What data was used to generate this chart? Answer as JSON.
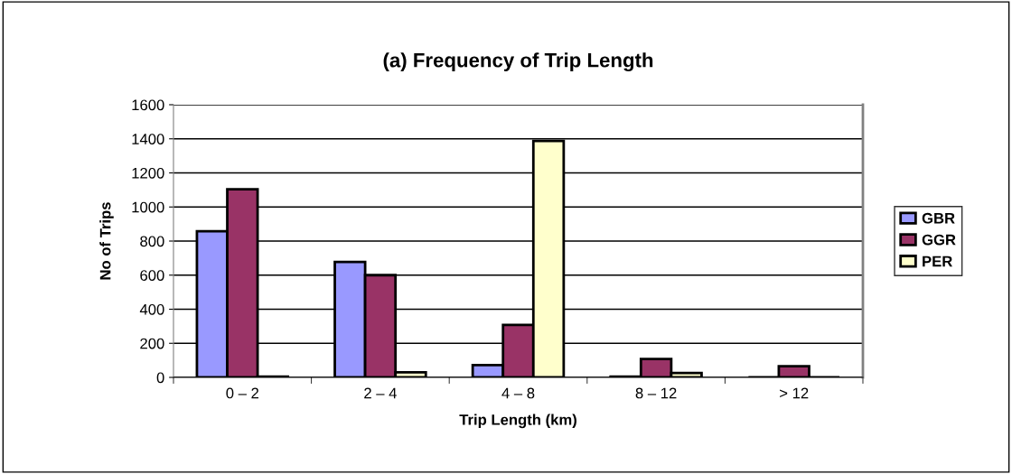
{
  "chart_data": {
    "type": "bar",
    "title": "(a) Frequency of Trip Length",
    "xlabel": "Trip Length (km)",
    "ylabel": "No of Trips",
    "categories": [
      "0 – 2",
      "2 – 4",
      "4 – 8",
      "8 – 12",
      "> 12"
    ],
    "series": [
      {
        "name": "GBR",
        "color": "#9999ff",
        "values": [
          858,
          677,
          72,
          5,
          null
        ]
      },
      {
        "name": "GGR",
        "color": "#993366",
        "values": [
          1104,
          600,
          308,
          108,
          65
        ]
      },
      {
        "name": "PER",
        "color": "#ffffcc",
        "values": [
          5,
          30,
          1388,
          26,
          null
        ]
      }
    ],
    "ylim": [
      0,
      1600
    ],
    "yticks": [
      0,
      200,
      400,
      600,
      800,
      1000,
      1200,
      1400,
      1600
    ],
    "grid": "y",
    "legend": "right"
  }
}
